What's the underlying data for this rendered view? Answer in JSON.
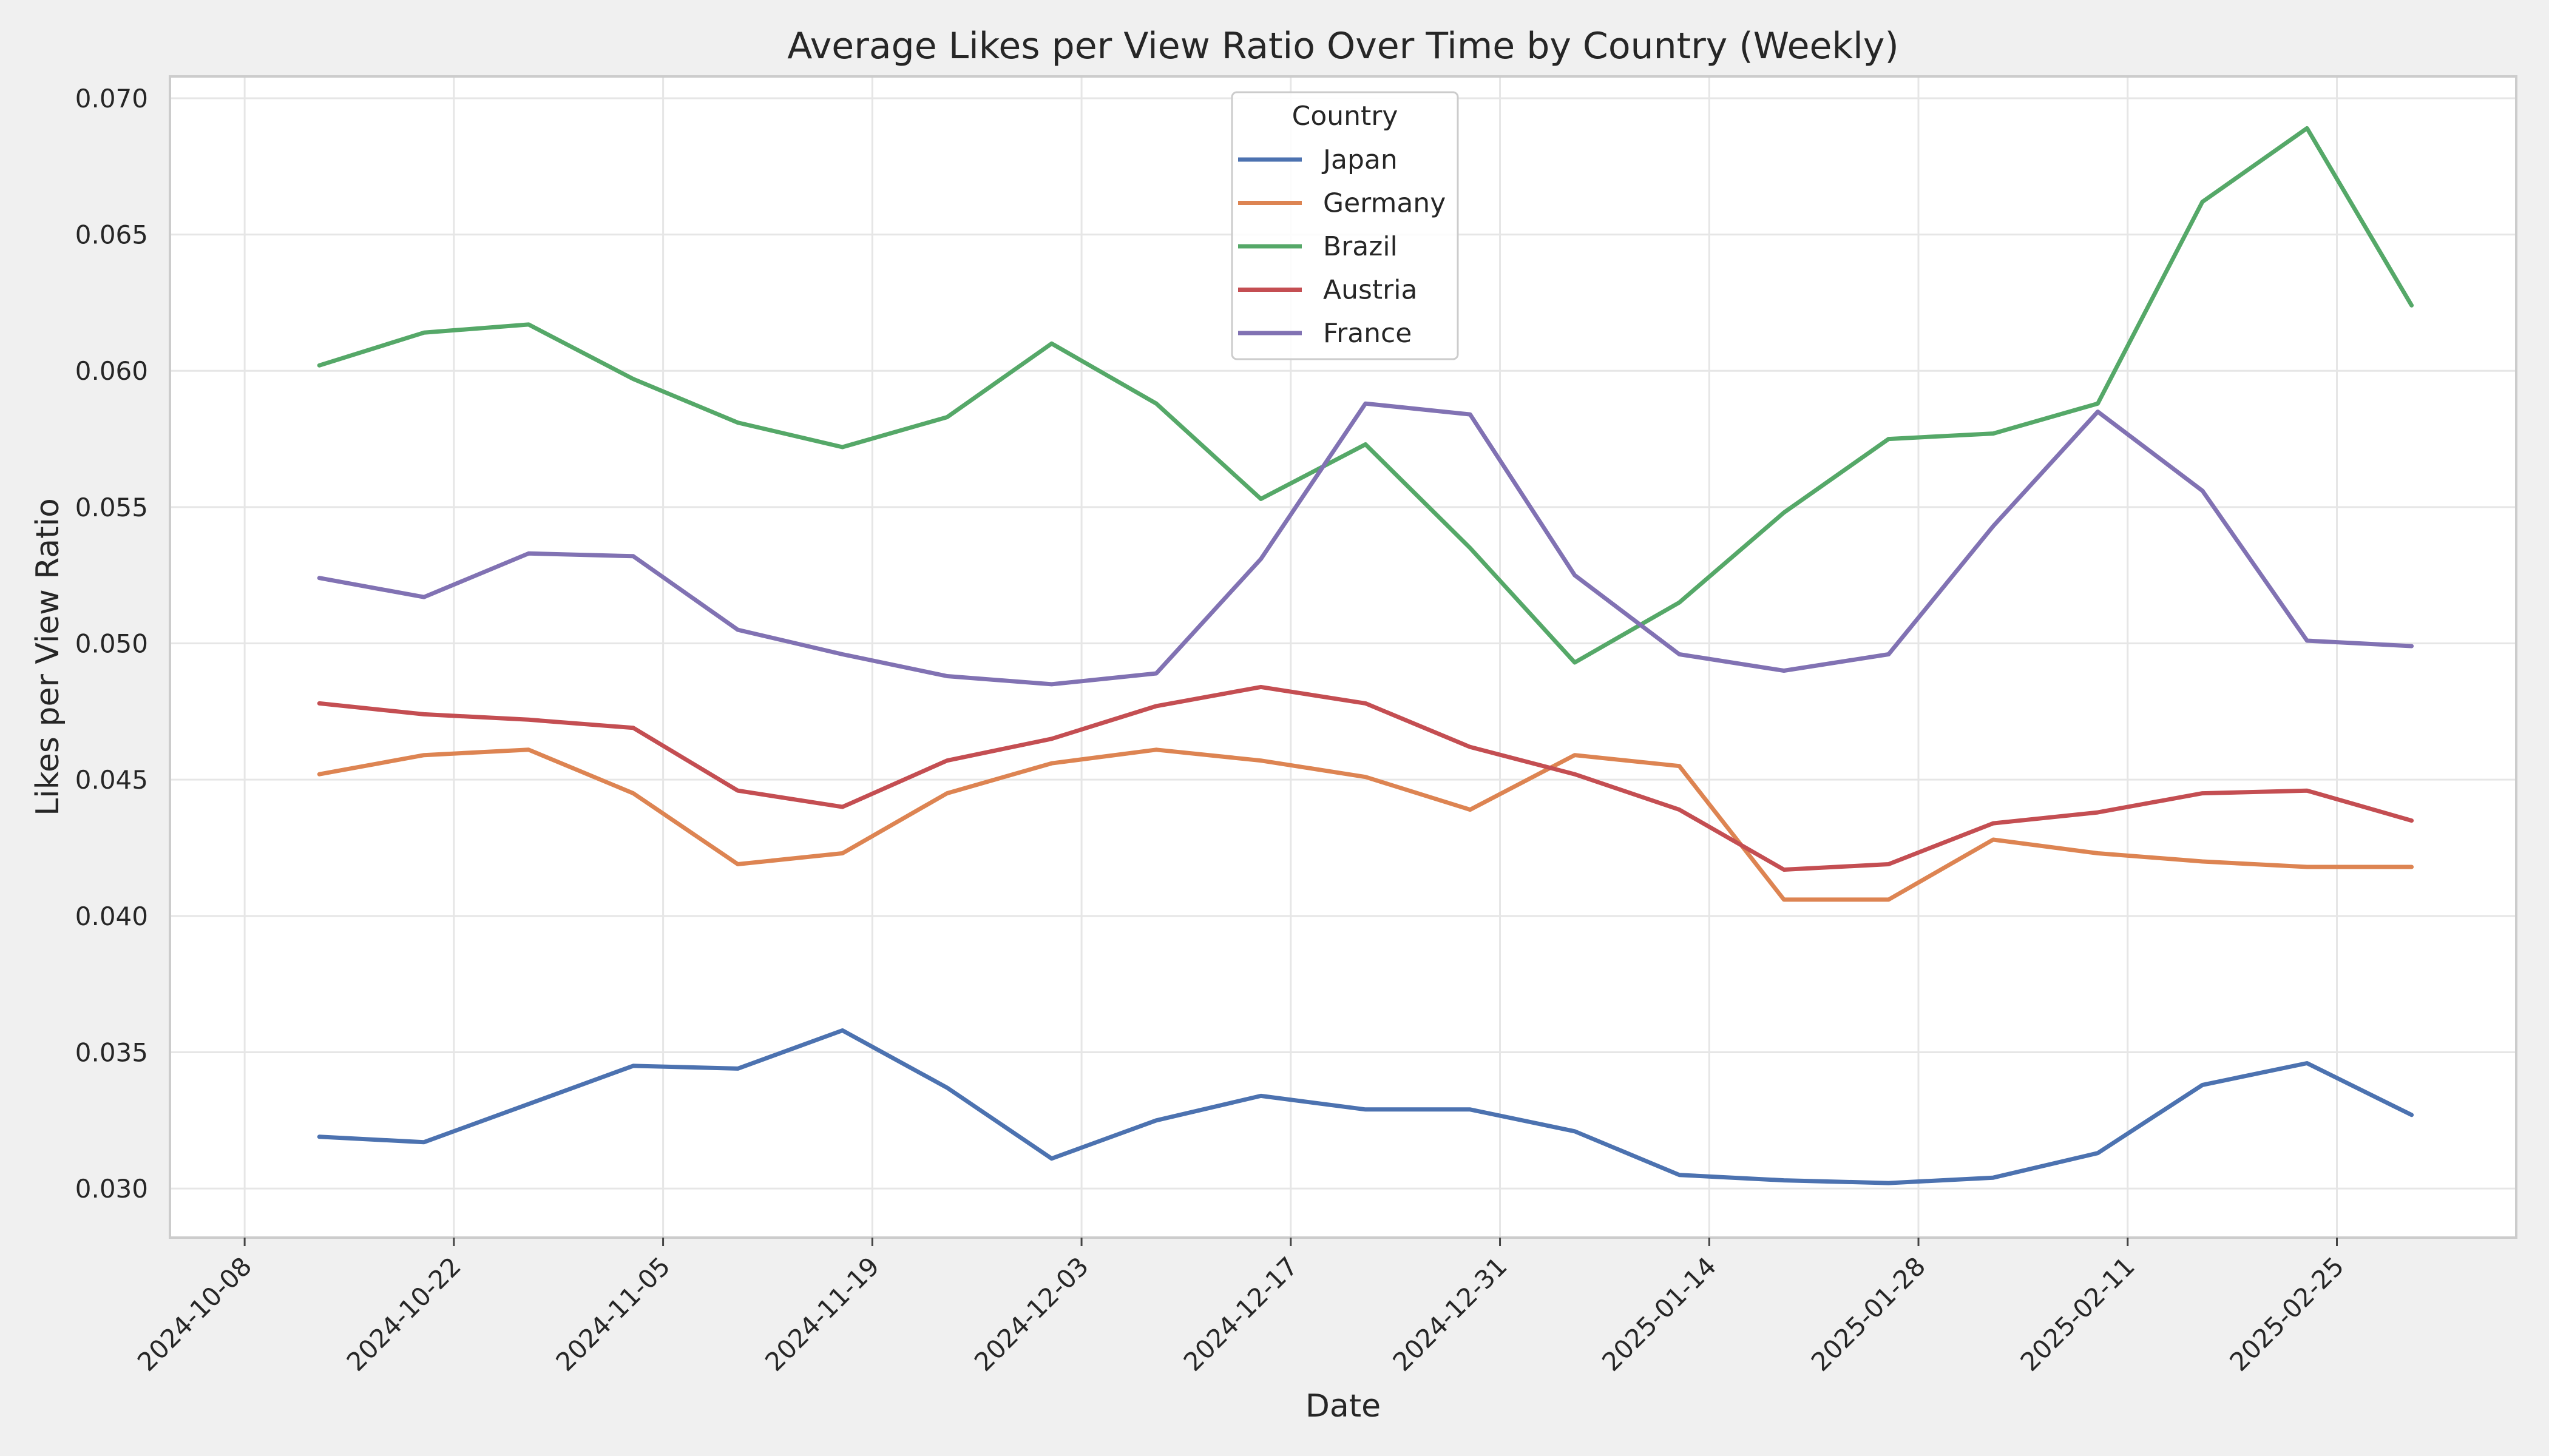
{
  "chart_data": {
    "type": "line",
    "title": "Average Likes per View Ratio Over Time by Country (Weekly)",
    "xlabel": "Date",
    "ylabel": "Likes per View Ratio",
    "x": [
      "2024-10-13",
      "2024-10-20",
      "2024-10-27",
      "2024-11-03",
      "2024-11-10",
      "2024-11-17",
      "2024-11-24",
      "2024-12-01",
      "2024-12-08",
      "2024-12-15",
      "2024-12-22",
      "2024-12-29",
      "2025-01-05",
      "2025-01-12",
      "2025-01-19",
      "2025-01-26",
      "2025-02-02",
      "2025-02-09",
      "2025-02-16",
      "2025-02-23",
      "2025-03-02"
    ],
    "xticks": [
      "2024-10-08",
      "2024-10-22",
      "2024-11-05",
      "2024-11-19",
      "2024-12-03",
      "2024-12-17",
      "2024-12-31",
      "2025-01-14",
      "2025-01-28",
      "2025-02-11",
      "2025-02-25"
    ],
    "xlim": [
      "2024-10-03",
      "2025-03-09"
    ],
    "yticks": [
      "0.030",
      "0.035",
      "0.040",
      "0.045",
      "0.050",
      "0.055",
      "0.060",
      "0.065",
      "0.070"
    ],
    "ylim": [
      0.0282,
      0.0708
    ],
    "grid": true,
    "legend": {
      "title": "Country",
      "position": "top-center"
    },
    "series": [
      {
        "name": "Japan",
        "color": "#4c72b0",
        "values": [
          0.0319,
          0.0317,
          0.0331,
          0.0345,
          0.0344,
          0.0358,
          0.0337,
          0.0311,
          0.0325,
          0.0334,
          0.0329,
          0.0329,
          0.0321,
          0.0305,
          0.0303,
          0.0302,
          0.0304,
          0.0313,
          0.0338,
          0.0346,
          0.0327
        ]
      },
      {
        "name": "Germany",
        "color": "#dd8452",
        "values": [
          0.0452,
          0.0459,
          0.0461,
          0.0445,
          0.0419,
          0.0423,
          0.0445,
          0.0456,
          0.0461,
          0.0457,
          0.0451,
          0.0439,
          0.0459,
          0.0455,
          0.0406,
          0.0406,
          0.0428,
          0.0423,
          0.042,
          0.0418,
          0.0418
        ]
      },
      {
        "name": "Brazil",
        "color": "#55a868",
        "values": [
          0.0602,
          0.0614,
          0.0617,
          0.0597,
          0.0581,
          0.0572,
          0.0583,
          0.061,
          0.0588,
          0.0553,
          0.0573,
          0.0535,
          0.0493,
          0.0515,
          0.0548,
          0.0575,
          0.0577,
          0.0588,
          0.0662,
          0.0689,
          0.0624
        ]
      },
      {
        "name": "Austria",
        "color": "#c44e52",
        "values": [
          0.0478,
          0.0474,
          0.0472,
          0.0469,
          0.0446,
          0.044,
          0.0457,
          0.0465,
          0.0477,
          0.0484,
          0.0478,
          0.0462,
          0.0452,
          0.0439,
          0.0417,
          0.0419,
          0.0434,
          0.0438,
          0.0445,
          0.0446,
          0.0435
        ]
      },
      {
        "name": "France",
        "color": "#8172b3",
        "values": [
          0.0524,
          0.0517,
          0.0533,
          0.0532,
          0.0505,
          0.0496,
          0.0488,
          0.0485,
          0.0489,
          0.0531,
          0.0588,
          0.0584,
          0.0525,
          0.0496,
          0.049,
          0.0496,
          0.0543,
          0.0585,
          0.0556,
          0.0501,
          0.0499
        ]
      }
    ]
  }
}
